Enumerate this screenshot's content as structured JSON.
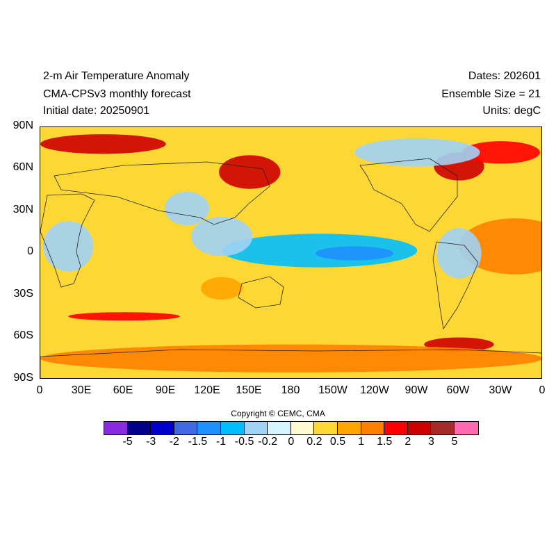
{
  "titles": {
    "left": [
      "2-m Air Temperature Anomaly",
      "CMA-CPSv3 monthly forecast",
      "Initial date: 20250901"
    ],
    "right": [
      "Dates: 202601",
      "Ensemble Size = 21",
      "Units: degC"
    ]
  },
  "map": {
    "projection": "cylindrical-equidistant",
    "lon_range": [
      0,
      360
    ],
    "lat_range": [
      -90,
      90
    ],
    "lat_labels": [
      "90N",
      "60N",
      "30N",
      "0",
      "30S",
      "60S",
      "90S"
    ],
    "lon_labels": [
      "0",
      "30E",
      "60E",
      "90E",
      "120E",
      "150E",
      "180",
      "150W",
      "120W",
      "90W",
      "60W",
      "30W",
      "0"
    ],
    "anomaly_regions": [
      {
        "lon": 340,
        "lat": 5,
        "rx": 40,
        "ry": 20,
        "level": 1
      },
      {
        "lon": 200,
        "lat": 2,
        "rx": 70,
        "ry": 12,
        "level": -1
      },
      {
        "lon": 225,
        "lat": 0,
        "rx": 28,
        "ry": 5,
        "level": -1.5
      },
      {
        "lon": 150,
        "lat": 58,
        "rx": 22,
        "ry": 12,
        "level": 2
      },
      {
        "lon": 45,
        "lat": 78,
        "rx": 45,
        "ry": 7,
        "level": 2
      },
      {
        "lon": 300,
        "lat": 62,
        "rx": 18,
        "ry": 10,
        "level": 2
      },
      {
        "lon": 330,
        "lat": 72,
        "rx": 28,
        "ry": 8,
        "level": 1.5
      },
      {
        "lon": 270,
        "lat": 72,
        "rx": 45,
        "ry": 10,
        "level": -0.5
      },
      {
        "lon": 105,
        "lat": 32,
        "rx": 16,
        "ry": 12,
        "level": -0.5
      },
      {
        "lon": 130,
        "lat": 12,
        "rx": 22,
        "ry": 14,
        "level": -0.5
      },
      {
        "lon": 300,
        "lat": 0,
        "rx": 16,
        "ry": 18,
        "level": -0.5
      },
      {
        "lon": 20,
        "lat": 5,
        "rx": 18,
        "ry": 18,
        "level": -0.5
      },
      {
        "lon": 130,
        "lat": -25,
        "rx": 15,
        "ry": 8,
        "level": 0.5
      },
      {
        "lon": 300,
        "lat": -65,
        "rx": 25,
        "ry": 5,
        "level": 2
      },
      {
        "lon": 60,
        "lat": -45,
        "rx": 40,
        "ry": 3,
        "level": 1.5
      },
      {
        "lon": 180,
        "lat": -75,
        "rx": 180,
        "ry": 10,
        "level": 1
      }
    ]
  },
  "copyright": "Copyright © CEMC, CMA",
  "colorbar": {
    "colors": [
      "#8a2be2",
      "#00008b",
      "#0000cd",
      "#4169e1",
      "#1e90ff",
      "#00bfff",
      "#a0d2f5",
      "#d4f4ff",
      "#fffacd",
      "#fdd835",
      "#ffa500",
      "#ff7f00",
      "#ff0000",
      "#cd0000",
      "#a52a2a",
      "#ff69b4"
    ],
    "labels": [
      "-5",
      "-3",
      "-2",
      "-1.5",
      "-1",
      "-0.5",
      "-0.2",
      "0",
      "0.2",
      "0.5",
      "1",
      "1.5",
      "2",
      "3",
      "5"
    ]
  }
}
